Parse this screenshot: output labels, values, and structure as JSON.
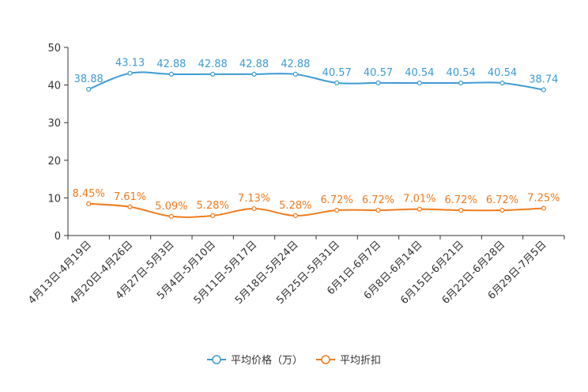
{
  "chart_data": {
    "type": "line",
    "title": "",
    "xlabel": "",
    "ylabel": "",
    "ylim": [
      0,
      50
    ],
    "yticks": [
      0,
      10,
      20,
      30,
      40,
      50
    ],
    "grid": false,
    "legend_position": "bottom-center",
    "categories": [
      "4月13日-4月19日",
      "4月20日-4月26日",
      "4月27日-5月3日",
      "5月4日-5月10日",
      "5月11日-5月17日",
      "5月18日-5月24日",
      "5月25日-5月31日",
      "6月1日-6月7日",
      "6月8日-6月14日",
      "6月15日-6月21日",
      "6月22日-6月28日",
      "6月29日-7月5日"
    ],
    "series": [
      {
        "name": "平均价格（万）",
        "color": "#3c9bd3",
        "values": [
          38.88,
          43.13,
          42.88,
          42.88,
          42.88,
          42.88,
          40.57,
          40.57,
          40.54,
          40.54,
          40.54,
          38.74
        ],
        "labels": [
          "38.88",
          "43.13",
          "42.88",
          "42.88",
          "42.88",
          "42.88",
          "40.57",
          "40.57",
          "40.54",
          "40.54",
          "40.54",
          "38.74"
        ]
      },
      {
        "name": "平均折扣",
        "color": "#f07b1d",
        "values": [
          8.45,
          7.61,
          5.09,
          5.28,
          7.13,
          5.28,
          6.72,
          6.72,
          7.01,
          6.72,
          6.72,
          7.25
        ],
        "labels": [
          "8.45%",
          "7.61%",
          "5.09%",
          "5.28%",
          "7.13%",
          "5.28%",
          "6.72%",
          "6.72%",
          "7.01%",
          "6.72%",
          "6.72%",
          "7.25%"
        ]
      }
    ]
  }
}
